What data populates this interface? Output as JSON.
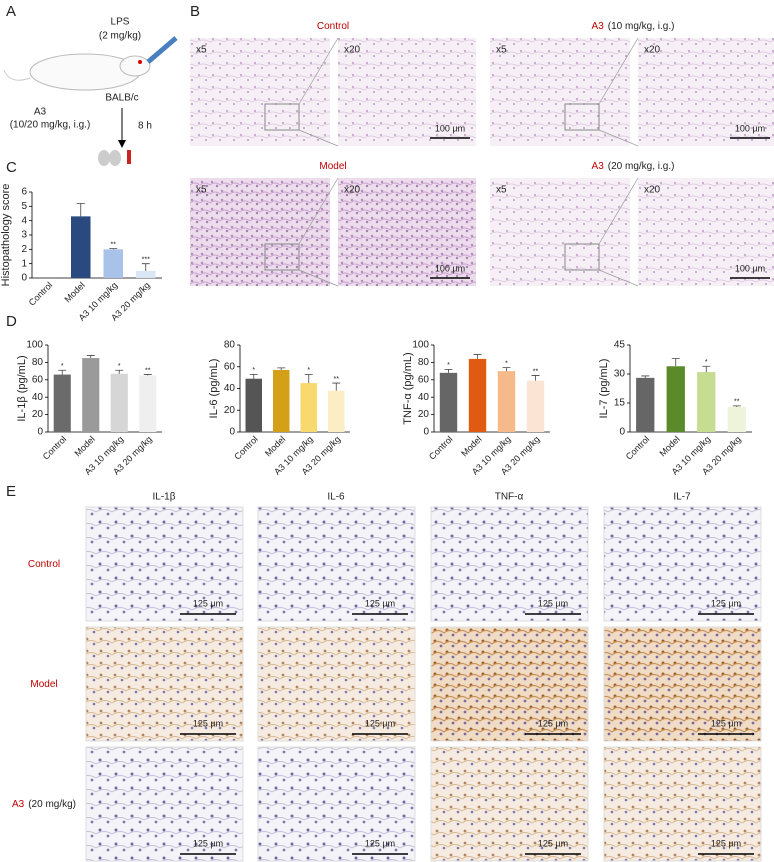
{
  "panel_labels": [
    "A",
    "B",
    "C",
    "D",
    "E"
  ],
  "panel_a": {
    "injection": "LPS",
    "injection_dose": "(2 mg/kg)",
    "strain": "BALB/c",
    "drug": "A3",
    "drug_dose": "(10/20 mg/kg, i.g.)",
    "time": "8 h"
  },
  "panel_b": {
    "groups": [
      {
        "name": "Control"
      },
      {
        "name": "A3",
        "suffix": "(10 mg/kg, i.g.)"
      },
      {
        "name": "Model"
      },
      {
        "name": "A3",
        "suffix": "(20 mg/kg, i.g.)"
      }
    ],
    "low_mag": "x5",
    "high_mag": "x20",
    "scale": "100 µm"
  },
  "panel_e": {
    "columns": [
      "IL-1β",
      "IL-6",
      "TNF-α",
      "IL-7"
    ],
    "rows": [
      {
        "name": "Control"
      },
      {
        "name": "Model"
      },
      {
        "name": "A3",
        "suffix": "(20 mg/kg)"
      }
    ],
    "scale": "125 µm"
  },
  "chart_data": [
    {
      "type": "bar",
      "y_label": "Histopathology score",
      "categories": [
        "Control",
        "Model",
        "A3 10 mg/kg",
        "A3 20 mg/kg"
      ],
      "values": [
        0,
        4.3,
        2.0,
        0.5
      ],
      "errors": [
        0,
        0.9,
        0.05,
        0.5
      ],
      "annotations": [
        null,
        null,
        "**",
        "***"
      ],
      "colors": [
        "#2a4a7f",
        "#2a4a7f",
        "#a9c3e8",
        "#dbe6f5"
      ],
      "ylim": [
        0,
        6
      ],
      "yticks": [
        0,
        1,
        2,
        3,
        4,
        5,
        6
      ]
    },
    {
      "type": "bar",
      "y_label": "IL-1β (pg/mL)",
      "categories": [
        "Control",
        "Model",
        "A3 10 mg/kg",
        "A3 20 mg/kg"
      ],
      "values": [
        66,
        85,
        67,
        65
      ],
      "errors": [
        5,
        3,
        4,
        1
      ],
      "annotations": [
        "*",
        null,
        "*",
        "**"
      ],
      "colors": [
        "#6b6b6b",
        "#9a9a9a",
        "#d6d6d6",
        "#efefef"
      ],
      "ylim": [
        0,
        100
      ],
      "yticks": [
        0,
        20,
        40,
        60,
        80,
        100
      ]
    },
    {
      "type": "bar",
      "y_label": "IL-6 (pg/mL)",
      "categories": [
        "Control",
        "Model",
        "A3 10 mg/kg",
        "A3 20 mg/kg"
      ],
      "values": [
        49,
        57,
        45,
        38
      ],
      "errors": [
        4,
        2,
        8,
        7
      ],
      "annotations": [
        "*",
        null,
        "*",
        "**"
      ],
      "colors": [
        "#555555",
        "#d4a017",
        "#f7d96e",
        "#fbeec4"
      ],
      "ylim": [
        0,
        80
      ],
      "yticks": [
        0,
        20,
        40,
        60,
        80
      ]
    },
    {
      "type": "bar",
      "y_label": "TNF-α (pg/mL)",
      "categories": [
        "Control",
        "Model",
        "A3 10 mg/kg",
        "A3 20 mg/kg"
      ],
      "values": [
        68,
        84,
        70,
        59
      ],
      "errors": [
        4,
        5,
        4,
        6
      ],
      "annotations": [
        "*",
        null,
        "*",
        "**"
      ],
      "colors": [
        "#666666",
        "#e05a12",
        "#f5b98a",
        "#fbe4d4"
      ],
      "ylim": [
        0,
        100
      ],
      "yticks": [
        0,
        20,
        40,
        60,
        80,
        100
      ]
    },
    {
      "type": "bar",
      "y_label": "IL-7 (pg/mL)",
      "categories": [
        "Control",
        "Model",
        "A3 10 mg/kg",
        "A3 20 mg/kg"
      ],
      "values": [
        28,
        34,
        31,
        13
      ],
      "errors": [
        1,
        4,
        3,
        0.5
      ],
      "annotations": [
        null,
        null,
        "*",
        "**"
      ],
      "colors": [
        "#666666",
        "#5a8a2a",
        "#c6dc91",
        "#eef4db"
      ],
      "ylim": [
        0,
        45
      ],
      "yticks": [
        0,
        15,
        30,
        45
      ]
    }
  ]
}
